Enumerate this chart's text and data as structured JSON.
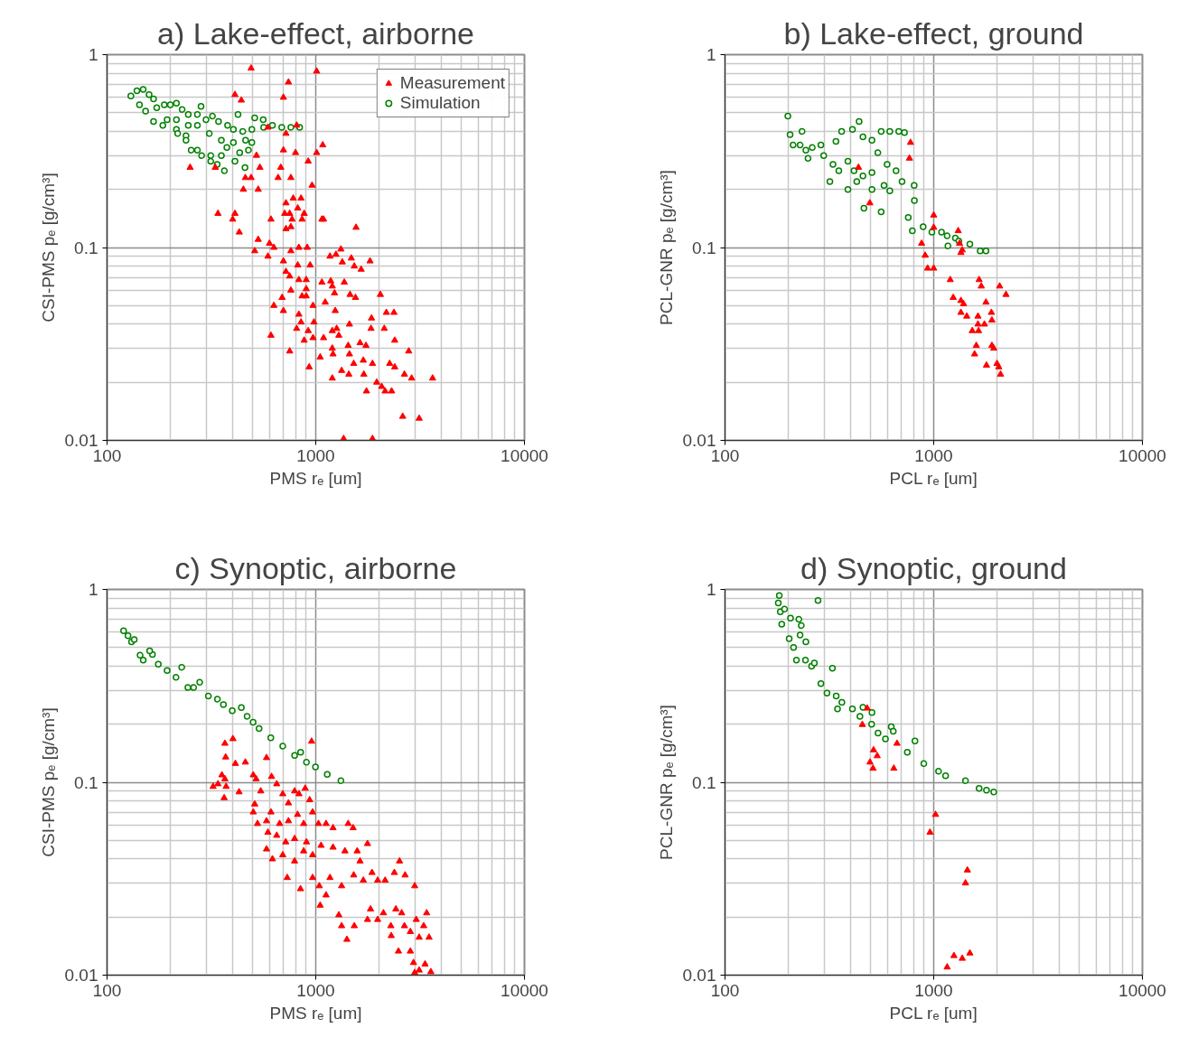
{
  "chart_data": [
    {
      "type": "scatter",
      "title": "a) Lake-effect, airborne",
      "xlabel": "PMS rₑ [um]",
      "ylabel": "CSI-PMS pₑ [g/cm³]",
      "log": "xy",
      "grid": true,
      "legend": "top right",
      "xlim": [
        100,
        10000
      ],
      "ylim": [
        0.01,
        1
      ],
      "xticks": [
        100,
        1000,
        10000
      ],
      "yticks": [
        0.01,
        0.1,
        1
      ],
      "series": [
        {
          "name": "Measurement",
          "color": "#ff0000",
          "marker": "triangle",
          "x": [
            490,
            1010,
            740,
            410,
            440,
            700,
            590,
            720,
            810,
            700,
            800,
            1010,
            1080,
            520,
            250,
            330,
            540,
            680,
            920,
            460,
            490,
            660,
            760,
            960,
            450,
            530,
            780,
            850,
            720,
            820,
            340,
            410,
            400,
            710,
            750,
            880,
            1090,
            610,
            770,
            860,
            1070,
            1560,
            430,
            720,
            760,
            530,
            600,
            630,
            830,
            910,
            510,
            760,
            1320,
            590,
            1170,
            1250,
            1480,
            1820,
            700,
            820,
            940,
            1340,
            1530,
            1650,
            720,
            750,
            830,
            900,
            1070,
            1180,
            1370,
            1200,
            900,
            760,
            2040,
            690,
            860,
            900,
            1230,
            1460,
            1550,
            630,
            700,
            970,
            1110,
            1240,
            2180,
            2370,
            1850,
            830,
            850,
            980,
            810,
            920,
            1200,
            1260,
            1450,
            1840,
            2130,
            610,
            880,
            970,
            1090,
            1290,
            1630,
            1430,
            1740,
            2390,
            2790,
            750,
            1200,
            1210,
            1450,
            1050,
            1520,
            1690,
            1870,
            2260,
            2390,
            2660,
            2880,
            3630,
            930,
            1200,
            1330,
            1440,
            1700,
            1960,
            2070,
            1750,
            2150,
            2310,
            2610,
            3130,
            1360,
            1870
          ],
          "values": [
            0.85,
            0.82,
            0.72,
            0.62,
            0.58,
            0.6,
            0.42,
            0.39,
            0.43,
            0.32,
            0.31,
            0.31,
            0.34,
            0.3,
            0.26,
            0.26,
            0.26,
            0.26,
            0.28,
            0.23,
            0.23,
            0.23,
            0.23,
            0.21,
            0.2,
            0.2,
            0.18,
            0.18,
            0.17,
            0.16,
            0.15,
            0.15,
            0.14,
            0.15,
            0.15,
            0.15,
            0.14,
            0.14,
            0.14,
            0.14,
            0.14,
            0.127,
            0.12,
            0.125,
            0.128,
            0.11,
            0.105,
            0.1,
            0.1,
            0.1,
            0.096,
            0.096,
            0.098,
            0.09,
            0.09,
            0.092,
            0.088,
            0.085,
            0.085,
            0.081,
            0.081,
            0.084,
            0.08,
            0.077,
            0.075,
            0.071,
            0.068,
            0.068,
            0.066,
            0.067,
            0.066,
            0.063,
            0.061,
            0.06,
            0.057,
            0.055,
            0.056,
            0.056,
            0.058,
            0.057,
            0.055,
            0.05,
            0.047,
            0.05,
            0.052,
            0.047,
            0.046,
            0.046,
            0.043,
            0.045,
            0.041,
            0.041,
            0.038,
            0.037,
            0.037,
            0.038,
            0.04,
            0.038,
            0.038,
            0.035,
            0.033,
            0.034,
            0.034,
            0.035,
            0.032,
            0.031,
            0.031,
            0.033,
            0.029,
            0.029,
            0.03,
            0.028,
            0.028,
            0.027,
            0.025,
            0.026,
            0.025,
            0.025,
            0.024,
            0.022,
            0.021,
            0.021,
            0.024,
            0.021,
            0.023,
            0.022,
            0.022,
            0.02,
            0.019,
            0.018,
            0.018,
            0.018,
            0.0133,
            0.013,
            0.0102,
            0.0102
          ]
        },
        {
          "name": "Simulation",
          "color": "#008000",
          "marker": "circle",
          "x": [
            130,
            139,
            149,
            159,
            167,
            143,
            153,
            167,
            173,
            188,
            201,
            215,
            185,
            215,
            218,
            239,
            239,
            253,
            271,
            284,
            314,
            314,
            337,
            365,
            353,
            375,
            410,
            458,
            432,
            476,
            494,
            424,
            510,
            560,
            229,
            245,
            271,
            282,
            298,
            320,
            342,
            378,
            403,
            447,
            494,
            563,
            620,
            687,
            760,
            837,
            271,
            309,
            353,
            403,
            461,
            215,
            194,
            245
          ],
          "values": [
            0.61,
            0.65,
            0.66,
            0.62,
            0.59,
            0.55,
            0.51,
            0.45,
            0.53,
            0.55,
            0.55,
            0.56,
            0.43,
            0.41,
            0.39,
            0.38,
            0.36,
            0.32,
            0.32,
            0.3,
            0.3,
            0.28,
            0.27,
            0.25,
            0.3,
            0.33,
            0.28,
            0.26,
            0.31,
            0.32,
            0.35,
            0.49,
            0.47,
            0.46,
            0.52,
            0.49,
            0.49,
            0.54,
            0.46,
            0.48,
            0.45,
            0.43,
            0.41,
            0.4,
            0.41,
            0.42,
            0.43,
            0.42,
            0.42,
            0.42,
            0.43,
            0.39,
            0.36,
            0.35,
            0.36,
            0.46,
            0.46,
            0.43
          ]
        }
      ]
    },
    {
      "type": "scatter",
      "title": "b) Lake-effect, ground",
      "xlabel": "PCL rₑ [um]",
      "ylabel": "PCL-GNR pₑ [g/cm³]",
      "log": "xy",
      "grid": true,
      "xlim": [
        100,
        10000
      ],
      "ylim": [
        0.01,
        1
      ],
      "xticks": [
        100,
        1000,
        10000
      ],
      "yticks": [
        0.01,
        0.1,
        1
      ],
      "series": [
        {
          "color": "#ff0000",
          "marker": "triangle",
          "x": [
            774,
            765,
            436,
            494,
            1000,
            1000,
            1310,
            1330,
            875,
            1370,
            1350,
            910,
            935,
            1000,
            1200,
            1650,
            1690,
            2070,
            2220,
            1240,
            1350,
            1390,
            1780,
            1350,
            1440,
            1630,
            1890,
            1900,
            1630,
            1750,
            1530,
            1640,
            1600,
            1900,
            1940,
            1570,
            1790,
            2010,
            2050,
            2090
          ],
          "values": [
            0.35,
            0.29,
            0.26,
            0.17,
            0.147,
            0.127,
            0.122,
            0.105,
            0.105,
            0.097,
            0.094,
            0.091,
            0.078,
            0.078,
            0.068,
            0.068,
            0.063,
            0.063,
            0.057,
            0.055,
            0.053,
            0.051,
            0.052,
            0.046,
            0.044,
            0.044,
            0.046,
            0.042,
            0.04,
            0.04,
            0.037,
            0.037,
            0.031,
            0.031,
            0.03,
            0.028,
            0.0245,
            0.025,
            0.024,
            0.022
          ]
        },
        {
          "color": "#008000",
          "marker": "circle",
          "x": [
            200,
            205,
            234,
            212,
            229,
            244,
            250,
            262,
            288,
            297,
            318,
            340,
            362,
            408,
            439,
            388,
            415,
            458,
            463,
            428,
            506,
            560,
            578,
            616,
            660,
            705,
            806,
            808,
            755,
            790,
            890,
            980,
            1090,
            1160,
            1170,
            1270,
            1320,
            1490,
            1670,
            1780,
            458,
            506,
            560,
            616,
            680,
            724,
            540,
            598,
            506,
            351,
            388,
            329
          ],
          "values": [
            0.48,
            0.385,
            0.4,
            0.34,
            0.34,
            0.32,
            0.29,
            0.33,
            0.34,
            0.3,
            0.22,
            0.355,
            0.4,
            0.41,
            0.45,
            0.28,
            0.25,
            0.235,
            0.16,
            0.22,
            0.2,
            0.153,
            0.21,
            0.197,
            0.25,
            0.22,
            0.21,
            0.175,
            0.143,
            0.122,
            0.128,
            0.12,
            0.12,
            0.115,
            0.102,
            0.112,
            0.108,
            0.104,
            0.096,
            0.096,
            0.375,
            0.36,
            0.4,
            0.4,
            0.4,
            0.395,
            0.31,
            0.27,
            0.245,
            0.25,
            0.2,
            0.27
          ]
        }
      ]
    },
    {
      "type": "scatter",
      "title": "c) Synoptic, airborne",
      "xlabel": "PMS rₑ [um]",
      "ylabel": "CSI-PMS pₑ [g/cm³]",
      "log": "xy",
      "grid": true,
      "xlim": [
        100,
        10000
      ],
      "ylim": [
        0.01,
        1
      ],
      "xticks": [
        100,
        1000,
        10000
      ],
      "yticks": [
        0.01,
        0.1,
        1
      ],
      "series": [
        {
          "color": "#ff0000",
          "marker": "triangle",
          "x": [
            367,
            401,
            955,
            370,
            581,
            412,
            460,
            355,
            367,
            322,
            340,
            372,
            364,
            429,
            502,
            518,
            614,
            650,
            792,
            890,
            545,
            502,
            526,
            581,
            510,
            695,
            740,
            831,
            935,
            610,
            671,
            740,
            818,
            875,
            966,
            590,
            650,
            718,
            792,
            903,
            1030,
            1120,
            1210,
            1430,
            1510,
            581,
            620,
            695,
            792,
            875,
            966,
            1060,
            1210,
            1380,
            1580,
            1770,
            1630,
            730,
            845,
            966,
            1040,
            1170,
            1330,
            1520,
            1690,
            1860,
            1980,
            2150,
            2380,
            2520,
            2680,
            2980,
            1050,
            1120,
            1290,
            1330,
            1410,
            1530,
            1770,
            1830,
            1980,
            2110,
            2290,
            2420,
            2580,
            2660,
            2840,
            3030,
            3130,
            3290,
            3400,
            3490,
            2490,
            2840,
            2940,
            3340,
            3130,
            3560,
            2980,
            2300
          ],
          "values": [
            0.159,
            0.168,
            0.163,
            0.135,
            0.134,
            0.125,
            0.127,
            0.109,
            0.104,
            0.095,
            0.098,
            0.095,
            0.083,
            0.089,
            0.109,
            0.104,
            0.107,
            0.098,
            0.09,
            0.093,
            0.09,
            0.07,
            0.061,
            0.063,
            0.077,
            0.087,
            0.078,
            0.087,
            0.081,
            0.07,
            0.061,
            0.063,
            0.068,
            0.061,
            0.07,
            0.055,
            0.053,
            0.049,
            0.051,
            0.049,
            0.061,
            0.061,
            0.058,
            0.061,
            0.058,
            0.045,
            0.04,
            0.042,
            0.039,
            0.044,
            0.042,
            0.047,
            0.046,
            0.044,
            0.044,
            0.048,
            0.039,
            0.032,
            0.028,
            0.032,
            0.029,
            0.032,
            0.029,
            0.033,
            0.031,
            0.034,
            0.031,
            0.031,
            0.034,
            0.039,
            0.033,
            0.029,
            0.023,
            0.026,
            0.0205,
            0.018,
            0.0153,
            0.018,
            0.0194,
            0.022,
            0.0194,
            0.021,
            0.018,
            0.022,
            0.021,
            0.018,
            0.0168,
            0.0194,
            0.0157,
            0.018,
            0.021,
            0.0157,
            0.0133,
            0.0133,
            0.0116,
            0.0114,
            0.0106,
            0.0104,
            0.0103,
            0.016
          ]
        },
        {
          "color": "#008000",
          "marker": "circle",
          "x": [
            120,
            131,
            144,
            149,
            165,
            194,
            244,
            278,
            306,
            361,
            440,
            469,
            535,
            609,
            695,
            792,
            903,
            997,
            1135,
            1320,
            135,
            160,
            176,
            214,
            260,
            338,
            398,
            501,
            846,
            126,
            228
          ],
          "values": [
            0.61,
            0.535,
            0.456,
            0.43,
            0.46,
            0.38,
            0.31,
            0.33,
            0.28,
            0.253,
            0.244,
            0.22,
            0.19,
            0.17,
            0.154,
            0.138,
            0.127,
            0.12,
            0.11,
            0.102,
            0.55,
            0.48,
            0.41,
            0.35,
            0.31,
            0.27,
            0.235,
            0.205,
            0.143,
            0.575,
            0.395
          ]
        }
      ]
    },
    {
      "type": "scatter",
      "title": "d) Synoptic, ground",
      "xlabel": "PCL rₑ [um]",
      "ylabel": "PCL-GNR pₑ [g/cm³]",
      "log": "xy",
      "grid": true,
      "xlim": [
        100,
        10000
      ],
      "ylim": [
        0.01,
        1
      ],
      "xticks": [
        100,
        1000,
        10000
      ],
      "yticks": [
        0.01,
        0.1,
        1
      ],
      "series": [
        {
          "color": "#ff0000",
          "marker": "triangle",
          "x": [
            480,
            455,
            667,
            515,
            536,
            495,
            512,
            644,
            1020,
            960,
            1450,
            1420,
            1490,
            1250,
            1370,
            1160
          ],
          "values": [
            0.242,
            0.199,
            0.159,
            0.147,
            0.137,
            0.127,
            0.118,
            0.118,
            0.068,
            0.055,
            0.035,
            0.03,
            0.013,
            0.0126,
            0.0122,
            0.011
          ]
        },
        {
          "color": "#008000",
          "marker": "circle",
          "x": [
            182,
            279,
            180,
            184,
            187,
            193,
            206,
            226,
            232,
            203,
            213,
            229,
            220,
            244,
            243,
            260,
            268,
            327,
            288,
            308,
            341,
            363,
            346,
            408,
            458,
            506,
            443,
            504,
            541,
            587,
            626,
            640,
            747,
            813,
            897,
            1055,
            1140,
            1420,
            1650,
            1790,
            1940
          ],
          "values": [
            0.93,
            0.876,
            0.85,
            0.765,
            0.66,
            0.79,
            0.71,
            0.7,
            0.65,
            0.555,
            0.5,
            0.58,
            0.43,
            0.535,
            0.43,
            0.4,
            0.415,
            0.39,
            0.325,
            0.29,
            0.28,
            0.26,
            0.24,
            0.24,
            0.245,
            0.23,
            0.22,
            0.2,
            0.18,
            0.168,
            0.194,
            0.184,
            0.143,
            0.164,
            0.125,
            0.114,
            0.108,
            0.102,
            0.093,
            0.091,
            0.089
          ]
        }
      ]
    }
  ]
}
